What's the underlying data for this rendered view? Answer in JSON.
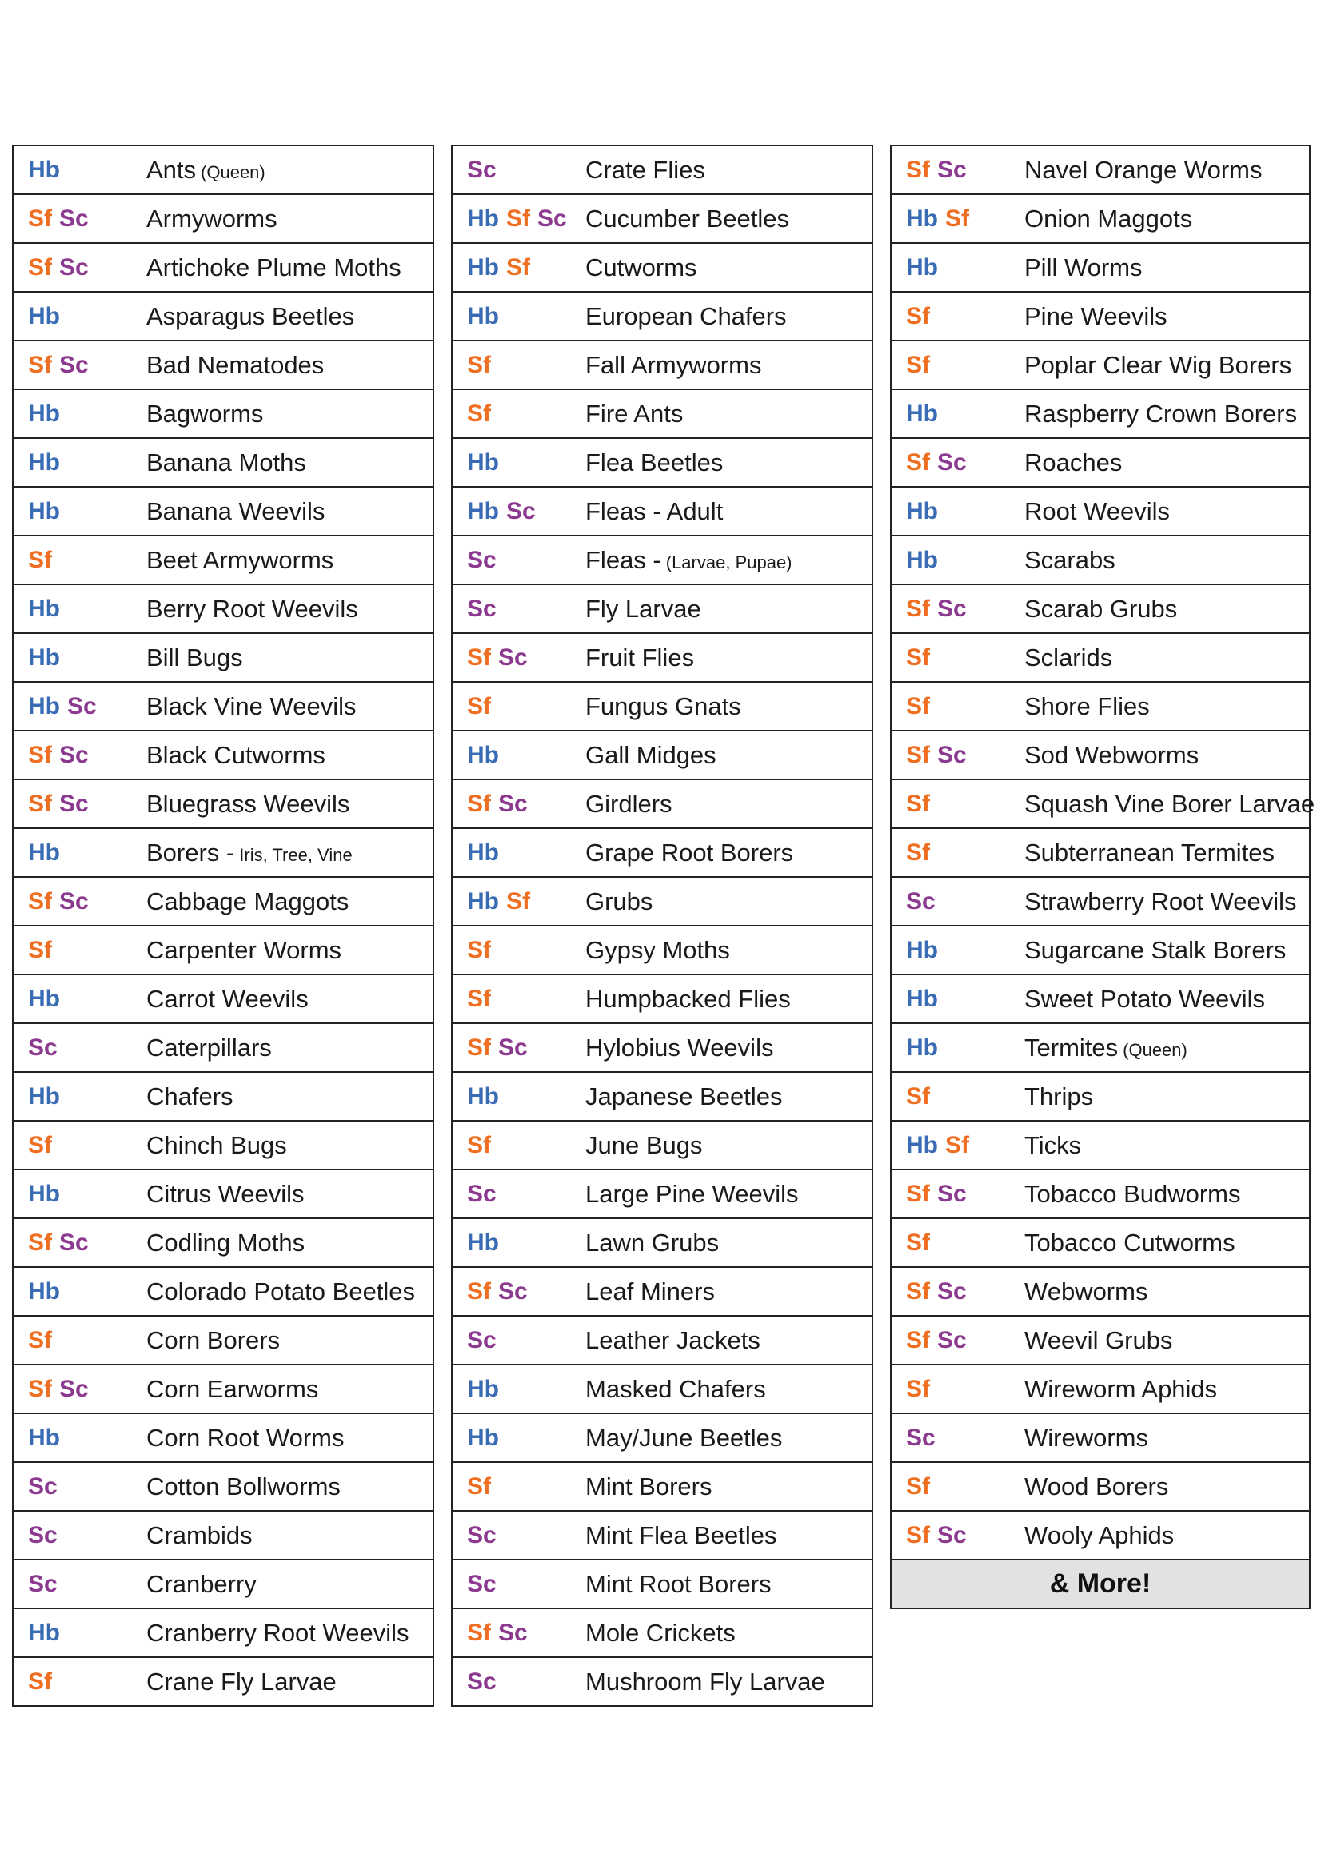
{
  "columns": [
    {
      "rows": [
        {
          "codes": [
            "Hb"
          ],
          "name": "Ants",
          "note": "(Queen)"
        },
        {
          "codes": [
            "Sf",
            "Sc"
          ],
          "name": "Armyworms"
        },
        {
          "codes": [
            "Sf",
            "Sc"
          ],
          "name": "Artichoke Plume Moths"
        },
        {
          "codes": [
            "Hb"
          ],
          "name": "Asparagus Beetles"
        },
        {
          "codes": [
            "Sf",
            "Sc"
          ],
          "name": "Bad Nematodes"
        },
        {
          "codes": [
            "Hb"
          ],
          "name": "Bagworms"
        },
        {
          "codes": [
            "Hb"
          ],
          "name": "Banana Moths"
        },
        {
          "codes": [
            "Hb"
          ],
          "name": "Banana Weevils"
        },
        {
          "codes": [
            "Sf"
          ],
          "name": "Beet Armyworms"
        },
        {
          "codes": [
            "Hb"
          ],
          "name": "Berry Root Weevils"
        },
        {
          "codes": [
            "Hb"
          ],
          "name": "Bill Bugs"
        },
        {
          "codes": [
            "Hb",
            "Sc"
          ],
          "name": "Black Vine Weevils"
        },
        {
          "codes": [
            "Sf",
            "Sc"
          ],
          "name": "Black Cutworms"
        },
        {
          "codes": [
            "Sf",
            "Sc"
          ],
          "name": "Bluegrass Weevils"
        },
        {
          "codes": [
            "Hb"
          ],
          "name": "Borers -",
          "note": "Iris, Tree, Vine"
        },
        {
          "codes": [
            "Sf",
            "Sc"
          ],
          "name": "Cabbage Maggots"
        },
        {
          "codes": [
            "Sf"
          ],
          "name": "Carpenter Worms"
        },
        {
          "codes": [
            "Hb"
          ],
          "name": "Carrot Weevils"
        },
        {
          "codes": [
            "Sc"
          ],
          "name": "Caterpillars"
        },
        {
          "codes": [
            "Hb"
          ],
          "name": "Chafers"
        },
        {
          "codes": [
            "Sf"
          ],
          "name": "Chinch Bugs"
        },
        {
          "codes": [
            "Hb"
          ],
          "name": "Citrus Weevils"
        },
        {
          "codes": [
            "Sf",
            "Sc"
          ],
          "name": "Codling Moths"
        },
        {
          "codes": [
            "Hb"
          ],
          "name": "Colorado Potato Beetles"
        },
        {
          "codes": [
            "Sf"
          ],
          "name": "Corn Borers"
        },
        {
          "codes": [
            "Sf",
            "Sc"
          ],
          "name": "Corn Earworms"
        },
        {
          "codes": [
            "Hb"
          ],
          "name": "Corn Root Worms"
        },
        {
          "codes": [
            "Sc"
          ],
          "name": "Cotton Bollworms"
        },
        {
          "codes": [
            "Sc"
          ],
          "name": "Crambids"
        },
        {
          "codes": [
            "Sc"
          ],
          "name": "Cranberry"
        },
        {
          "codes": [
            "Hb"
          ],
          "name": "Cranberry Root Weevils"
        },
        {
          "codes": [
            "Sf"
          ],
          "name": "Crane Fly Larvae"
        }
      ]
    },
    {
      "rows": [
        {
          "codes": [
            "Sc"
          ],
          "name": "Crate Flies"
        },
        {
          "codes": [
            "Hb",
            "Sf",
            "Sc"
          ],
          "name": "Cucumber Beetles"
        },
        {
          "codes": [
            "Hb",
            "Sf"
          ],
          "name": "Cutworms"
        },
        {
          "codes": [
            "Hb"
          ],
          "name": "European Chafers"
        },
        {
          "codes": [
            "Sf"
          ],
          "name": "Fall Armyworms"
        },
        {
          "codes": [
            "Sf"
          ],
          "name": "Fire Ants"
        },
        {
          "codes": [
            "Hb"
          ],
          "name": "Flea Beetles"
        },
        {
          "codes": [
            "Hb",
            "Sc"
          ],
          "name": "Fleas - Adult"
        },
        {
          "codes": [
            "Sc"
          ],
          "name": "Fleas -",
          "note": "(Larvae, Pupae)"
        },
        {
          "codes": [
            "Sc"
          ],
          "name": "Fly Larvae"
        },
        {
          "codes": [
            "Sf",
            "Sc"
          ],
          "name": "Fruit Flies"
        },
        {
          "codes": [
            "Sf"
          ],
          "name": "Fungus Gnats"
        },
        {
          "codes": [
            "Hb"
          ],
          "name": "Gall Midges"
        },
        {
          "codes": [
            "Sf",
            "Sc"
          ],
          "name": "Girdlers"
        },
        {
          "codes": [
            "Hb"
          ],
          "name": "Grape Root Borers"
        },
        {
          "codes": [
            "Hb",
            "Sf"
          ],
          "name": "Grubs"
        },
        {
          "codes": [
            "Sf"
          ],
          "name": "Gypsy Moths"
        },
        {
          "codes": [
            "Sf"
          ],
          "name": "Humpbacked Flies"
        },
        {
          "codes": [
            "Sf",
            "Sc"
          ],
          "name": "Hylobius Weevils"
        },
        {
          "codes": [
            "Hb"
          ],
          "name": "Japanese Beetles"
        },
        {
          "codes": [
            "Sf"
          ],
          "name": "June Bugs"
        },
        {
          "codes": [
            "Sc"
          ],
          "name": "Large Pine Weevils"
        },
        {
          "codes": [
            "Hb"
          ],
          "name": "Lawn Grubs"
        },
        {
          "codes": [
            "Sf",
            "Sc"
          ],
          "name": "Leaf Miners"
        },
        {
          "codes": [
            "Sc"
          ],
          "name": "Leather Jackets"
        },
        {
          "codes": [
            "Hb"
          ],
          "name": "Masked Chafers"
        },
        {
          "codes": [
            "Hb"
          ],
          "name": "May/June Beetles"
        },
        {
          "codes": [
            "Sf"
          ],
          "name": "Mint Borers"
        },
        {
          "codes": [
            "Sc"
          ],
          "name": "Mint Flea Beetles"
        },
        {
          "codes": [
            "Sc"
          ],
          "name": "Mint Root Borers"
        },
        {
          "codes": [
            "Sf",
            "Sc"
          ],
          "name": "Mole Crickets"
        },
        {
          "codes": [
            "Sc"
          ],
          "name": "Mushroom Fly Larvae"
        }
      ]
    },
    {
      "rows": [
        {
          "codes": [
            "Sf",
            "Sc"
          ],
          "name": "Navel Orange Worms"
        },
        {
          "codes": [
            "Hb",
            "Sf"
          ],
          "name": "Onion Maggots"
        },
        {
          "codes": [
            "Hb"
          ],
          "name": "Pill Worms"
        },
        {
          "codes": [
            "Sf"
          ],
          "name": "Pine Weevils"
        },
        {
          "codes": [
            "Sf"
          ],
          "name": "Poplar Clear Wig Borers"
        },
        {
          "codes": [
            "Hb"
          ],
          "name": "Raspberry Crown Borers"
        },
        {
          "codes": [
            "Sf",
            "Sc"
          ],
          "name": "Roaches"
        },
        {
          "codes": [
            "Hb"
          ],
          "name": "Root Weevils"
        },
        {
          "codes": [
            "Hb"
          ],
          "name": "Scarabs"
        },
        {
          "codes": [
            "Sf",
            "Sc"
          ],
          "name": "Scarab Grubs"
        },
        {
          "codes": [
            "Sf"
          ],
          "name": "Sclarids"
        },
        {
          "codes": [
            "Sf"
          ],
          "name": "Shore Flies"
        },
        {
          "codes": [
            "Sf",
            "Sc"
          ],
          "name": "Sod Webworms"
        },
        {
          "codes": [
            "Sf"
          ],
          "name": "Squash Vine Borer Larvae"
        },
        {
          "codes": [
            "Sf"
          ],
          "name": "Subterranean Termites"
        },
        {
          "codes": [
            "Sc"
          ],
          "name": "Strawberry Root Weevils"
        },
        {
          "codes": [
            "Hb"
          ],
          "name": "Sugarcane Stalk Borers"
        },
        {
          "codes": [
            "Hb"
          ],
          "name": "Sweet Potato Weevils"
        },
        {
          "codes": [
            "Hb"
          ],
          "name": "Termites",
          "note": "(Queen)"
        },
        {
          "codes": [
            "Sf"
          ],
          "name": "Thrips"
        },
        {
          "codes": [
            "Hb",
            "Sf"
          ],
          "name": "Ticks"
        },
        {
          "codes": [
            "Sf",
            "Sc"
          ],
          "name": "Tobacco Budworms"
        },
        {
          "codes": [
            "Sf"
          ],
          "name": "Tobacco Cutworms"
        },
        {
          "codes": [
            "Sf",
            "Sc"
          ],
          "name": "Webworms"
        },
        {
          "codes": [
            "Sf",
            "Sc"
          ],
          "name": "Weevil Grubs"
        },
        {
          "codes": [
            "Sf"
          ],
          "name": "Wireworm Aphids"
        },
        {
          "codes": [
            "Sc"
          ],
          "name": "Wireworms"
        },
        {
          "codes": [
            "Sf"
          ],
          "name": "Wood Borers"
        },
        {
          "codes": [
            "Sf",
            "Sc"
          ],
          "name": "Wooly Aphids"
        }
      ],
      "footer": "& More!"
    }
  ],
  "code_colors": {
    "Hb": "#3a6cb5",
    "Sf": "#ee6e22",
    "Sc": "#8b3a8f"
  }
}
